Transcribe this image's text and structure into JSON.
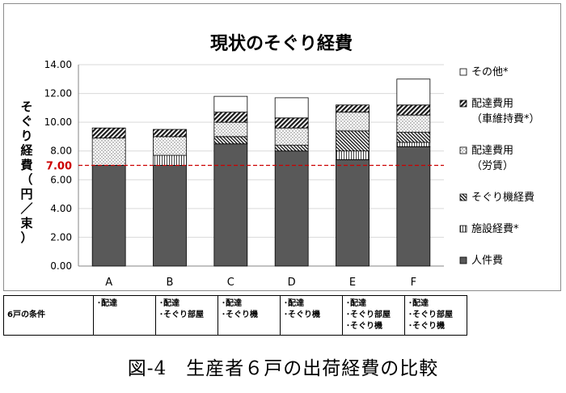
{
  "chart_data": {
    "type": "bar",
    "stacked": true,
    "title": "現状のそぐり経費",
    "ylabel": "そぐり経費（円／束）",
    "ylabel_chars": [
      "そ",
      "ぐ",
      "り",
      "経",
      "費",
      "（",
      "円",
      "／",
      "束",
      "）"
    ],
    "ylim": [
      0,
      14
    ],
    "yticks": [
      "0.00",
      "2.00",
      "4.00",
      "6.00",
      "8.00",
      "10.00",
      "12.00",
      "14.00"
    ],
    "grid": true,
    "legend_position": "right",
    "categories": [
      "A",
      "B",
      "C",
      "D",
      "E",
      "F"
    ],
    "reference_line": {
      "value": 7.0,
      "label": "7.00",
      "color": "#cc0000"
    },
    "series": [
      {
        "name": "人件費",
        "pattern": "solid",
        "values": [
          7.0,
          7.0,
          8.5,
          8.0,
          7.4,
          8.3
        ]
      },
      {
        "name": "施設経費*",
        "pattern": "vlines",
        "values": [
          0.0,
          0.7,
          0.0,
          0.0,
          0.6,
          0.3
        ]
      },
      {
        "name": "そぐり機経費",
        "pattern": "hatch-dense",
        "values": [
          0.0,
          0.0,
          0.5,
          0.4,
          1.4,
          0.7
        ]
      },
      {
        "name": "配達費用（労賃）",
        "pattern": "dots",
        "values": [
          1.9,
          1.3,
          1.0,
          1.2,
          1.3,
          1.2
        ]
      },
      {
        "name": "配達費用（車維持費*）",
        "pattern": "hatch",
        "values": [
          0.7,
          0.5,
          0.7,
          0.7,
          0.5,
          0.7
        ]
      },
      {
        "name": "その他*",
        "pattern": "white",
        "values": [
          0.0,
          0.0,
          1.1,
          1.4,
          0.0,
          1.8
        ]
      }
    ]
  },
  "legend": [
    {
      "lines": [
        "その他*"
      ],
      "pattern": "white"
    },
    {
      "lines": [
        "配達費用",
        "（車維持費*）"
      ],
      "pattern": "hatch"
    },
    {
      "lines": [
        "配達費用",
        "（労賃）"
      ],
      "pattern": "dots"
    },
    {
      "lines": [
        "そぐり機経費"
      ],
      "pattern": "hatch-dense"
    },
    {
      "lines": [
        "施設経費*"
      ],
      "pattern": "vlines"
    },
    {
      "lines": [
        "人件費"
      ],
      "pattern": "solid"
    }
  ],
  "conditions": {
    "header": "6戸の条件",
    "columns": [
      [
        "･配達"
      ],
      [
        "･配達",
        "･そぐり部屋"
      ],
      [
        "･配達",
        "･そぐり機"
      ],
      [
        "･配達",
        "･そぐり機"
      ],
      [
        "･配達",
        "･そぐり部屋",
        "･そぐり機"
      ],
      [
        "･配達",
        "･そぐり部屋",
        "･そぐり機"
      ]
    ]
  },
  "caption": "図-4　生産者６戸の出荷経費の比較",
  "colors": {
    "bar_dark": "#595959",
    "axis": "#868686",
    "grid": "#d9d9d9",
    "reference": "#cc0000"
  }
}
